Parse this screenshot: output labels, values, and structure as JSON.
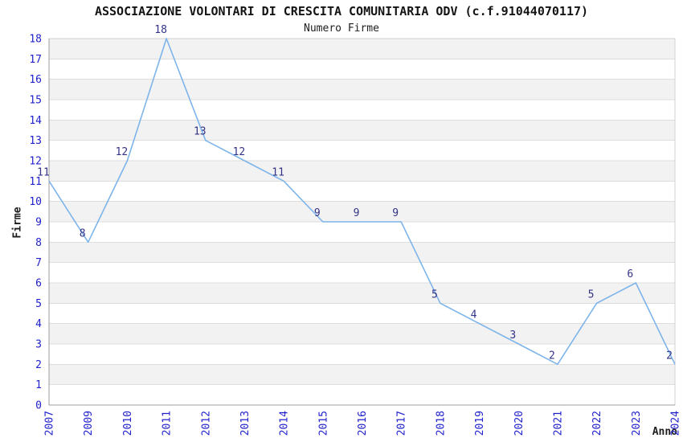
{
  "title": "ASSOCIAZIONE VOLONTARI DI CRESCITA COMUNITARIA ODV (c.f.91044070117)",
  "subtitle": "Numero Firme",
  "chart_data": {
    "type": "line",
    "series_name": "Numero Firme",
    "categories": [
      "2007",
      "2009",
      "2010",
      "2011",
      "2012",
      "2013",
      "2014",
      "2015",
      "2016",
      "2017",
      "2018",
      "2019",
      "2020",
      "2021",
      "2022",
      "2023",
      "2024"
    ],
    "values": [
      11,
      8,
      12,
      18,
      13,
      12,
      11,
      9,
      9,
      9,
      5,
      4,
      3,
      2,
      5,
      6,
      2
    ],
    "xlabel": "Anno",
    "ylabel": "Firme",
    "ylim": [
      0,
      18
    ],
    "ytick_step": 1,
    "grid": "horizontal-bands-alternating",
    "legend": "none",
    "data_labels": "on",
    "colors": {
      "line": "#7db4ea",
      "band": "#f2f2f2",
      "gridline": "#dddddd",
      "plot_border": "#d2d2d2",
      "axis_spine": "#9e9e9e",
      "tick_label": "#2222cc",
      "data_label": "#333388",
      "title_text": "#141414",
      "background": "#ffffff"
    }
  }
}
